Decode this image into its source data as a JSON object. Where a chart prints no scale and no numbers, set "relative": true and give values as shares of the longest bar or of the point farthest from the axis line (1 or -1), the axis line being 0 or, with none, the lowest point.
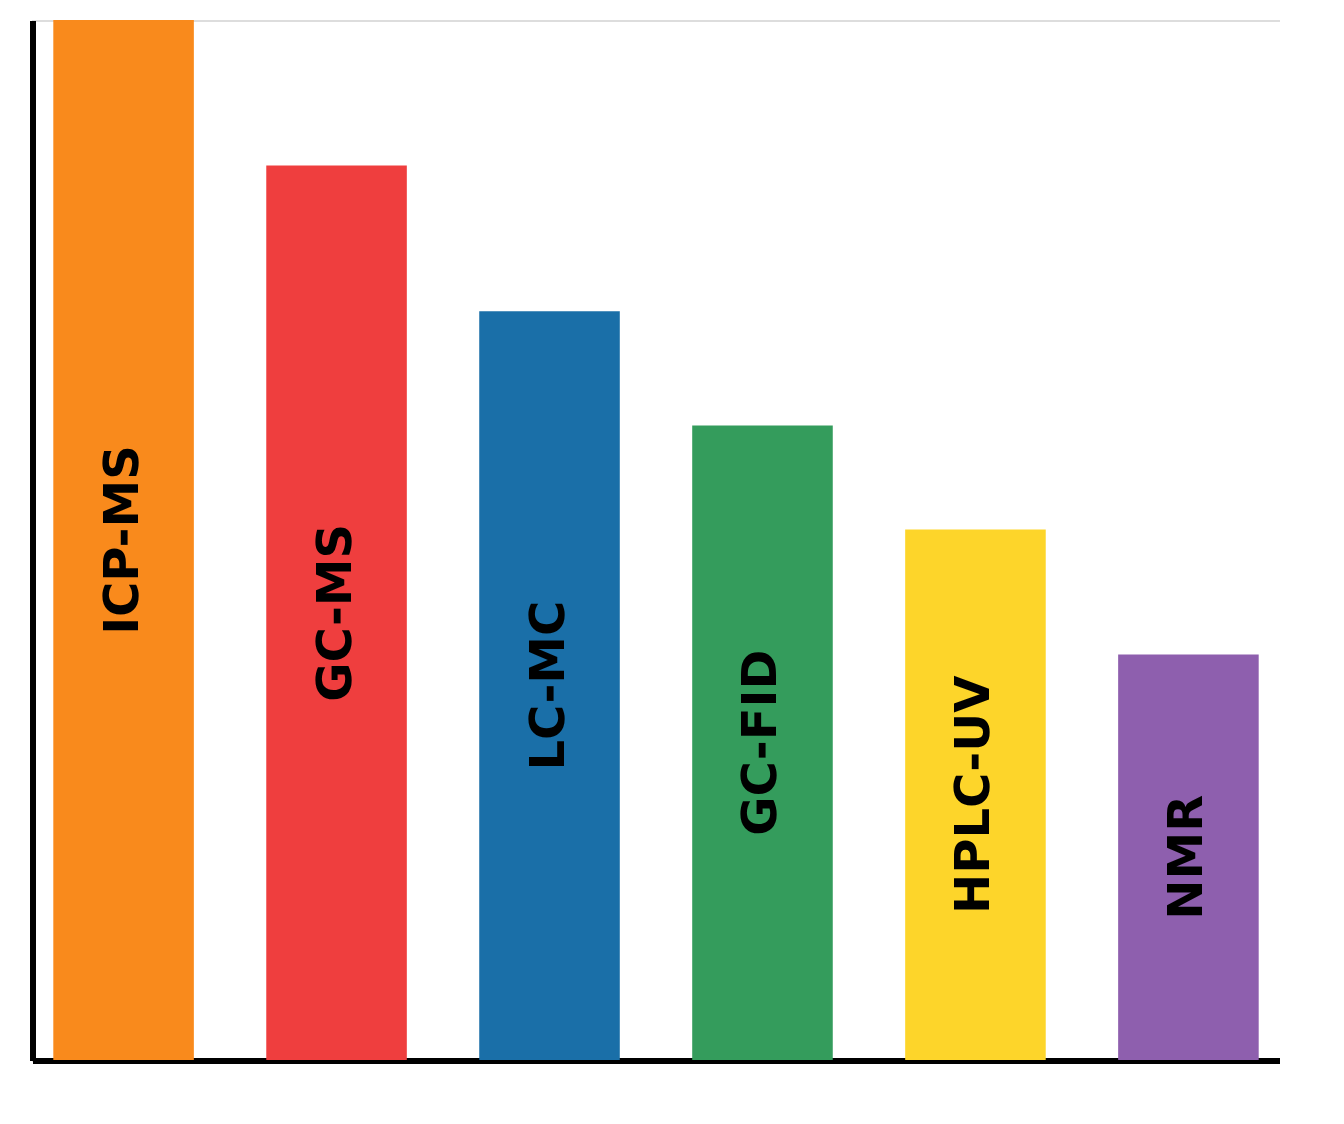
{
  "chart_data": {
    "type": "bar",
    "relative": true,
    "data_labels": false,
    "grid": false,
    "categories": [
      "ICP-MS",
      "GC-MS",
      "LC-MC",
      "GC-FID",
      "HPLC-UV",
      "NMR"
    ],
    "values": [
      1,
      0.86,
      0.72,
      0.61,
      0.51,
      0.39
    ],
    "colors": [
      "#f98a1c",
      "#ef3e3e",
      "#1a6fa8",
      "#349c5c",
      "#fdd52a",
      "#8e5fae"
    ]
  }
}
